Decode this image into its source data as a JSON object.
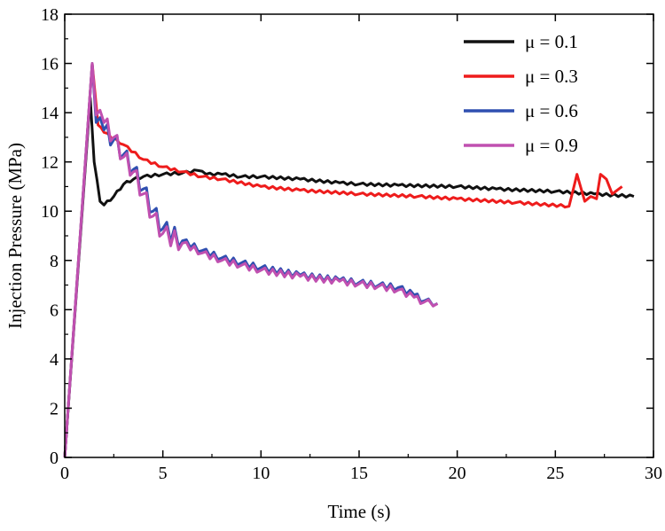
{
  "chart_data": {
    "type": "line",
    "title": "",
    "xlabel": "Time (s)",
    "ylabel": "Injection Pressure (MPa)",
    "xlim": [
      0,
      30
    ],
    "ylim": [
      0,
      18
    ],
    "xticks": [
      0,
      5,
      10,
      15,
      20,
      25,
      30
    ],
    "yticks": [
      0,
      2,
      4,
      6,
      8,
      10,
      12,
      14,
      16,
      18
    ],
    "grid": false,
    "legend_position": "top-right",
    "series": [
      {
        "name": "μ = 0.1",
        "color": "#111111",
        "x": [
          0,
          1.3,
          1.5,
          1.8,
          2.0,
          2.5,
          3,
          3.5,
          4,
          5,
          6,
          6.8,
          7.2,
          8,
          9,
          10,
          12,
          14,
          15,
          17,
          20,
          22,
          25,
          27,
          29
        ],
        "y": [
          0,
          14.6,
          12,
          10.4,
          10.25,
          10.6,
          11.1,
          11.3,
          11.4,
          11.5,
          11.55,
          11.65,
          11.5,
          11.5,
          11.4,
          11.4,
          11.3,
          11.15,
          11.1,
          11.05,
          11.0,
          10.9,
          10.8,
          10.7,
          10.6
        ]
      },
      {
        "name": "μ = 0.3",
        "color": "#ee1c1c",
        "x": [
          0,
          1.4,
          1.7,
          2,
          3,
          4,
          5,
          6,
          7,
          8,
          10,
          12,
          15,
          18,
          20,
          23,
          25.7,
          26.1,
          26.5,
          26.8,
          27.1,
          27.3,
          27.6,
          27.9,
          28.4
        ],
        "y": [
          0,
          16,
          13.5,
          13.2,
          12.7,
          12.1,
          11.8,
          11.6,
          11.4,
          11.3,
          11.0,
          10.85,
          10.7,
          10.6,
          10.5,
          10.35,
          10.2,
          11.5,
          10.4,
          10.6,
          10.5,
          11.5,
          11.3,
          10.7,
          11.0
        ]
      },
      {
        "name": "μ = 0.6",
        "color": "#2f4fb0",
        "x": [
          0,
          1.4,
          1.6,
          2,
          2.5,
          3,
          3.5,
          4,
          4.5,
          5,
          6,
          7,
          8,
          9,
          10,
          12,
          14,
          15,
          16,
          17,
          17.8,
          18.3,
          19
        ],
        "y": [
          0,
          16,
          13.6,
          13.3,
          12.9,
          12.3,
          11.7,
          10.9,
          10.0,
          9.3,
          8.8,
          8.4,
          8.1,
          7.9,
          7.7,
          7.4,
          7.2,
          7.1,
          7.0,
          6.9,
          6.6,
          6.35,
          6.25
        ]
      },
      {
        "name": "μ = 0.9",
        "color": "#c050b0",
        "x": [
          0,
          1.4,
          1.6,
          2,
          2.5,
          3,
          3.5,
          4,
          4.5,
          5,
          6,
          7,
          8,
          9,
          10,
          12,
          14,
          15,
          16,
          17,
          17.8,
          18.3,
          19
        ],
        "y": [
          0,
          16,
          13.9,
          13.6,
          13.0,
          12.2,
          11.6,
          10.7,
          9.8,
          9.1,
          8.7,
          8.3,
          8.0,
          7.8,
          7.6,
          7.35,
          7.15,
          7.05,
          6.95,
          6.8,
          6.5,
          6.3,
          6.25
        ]
      }
    ]
  }
}
